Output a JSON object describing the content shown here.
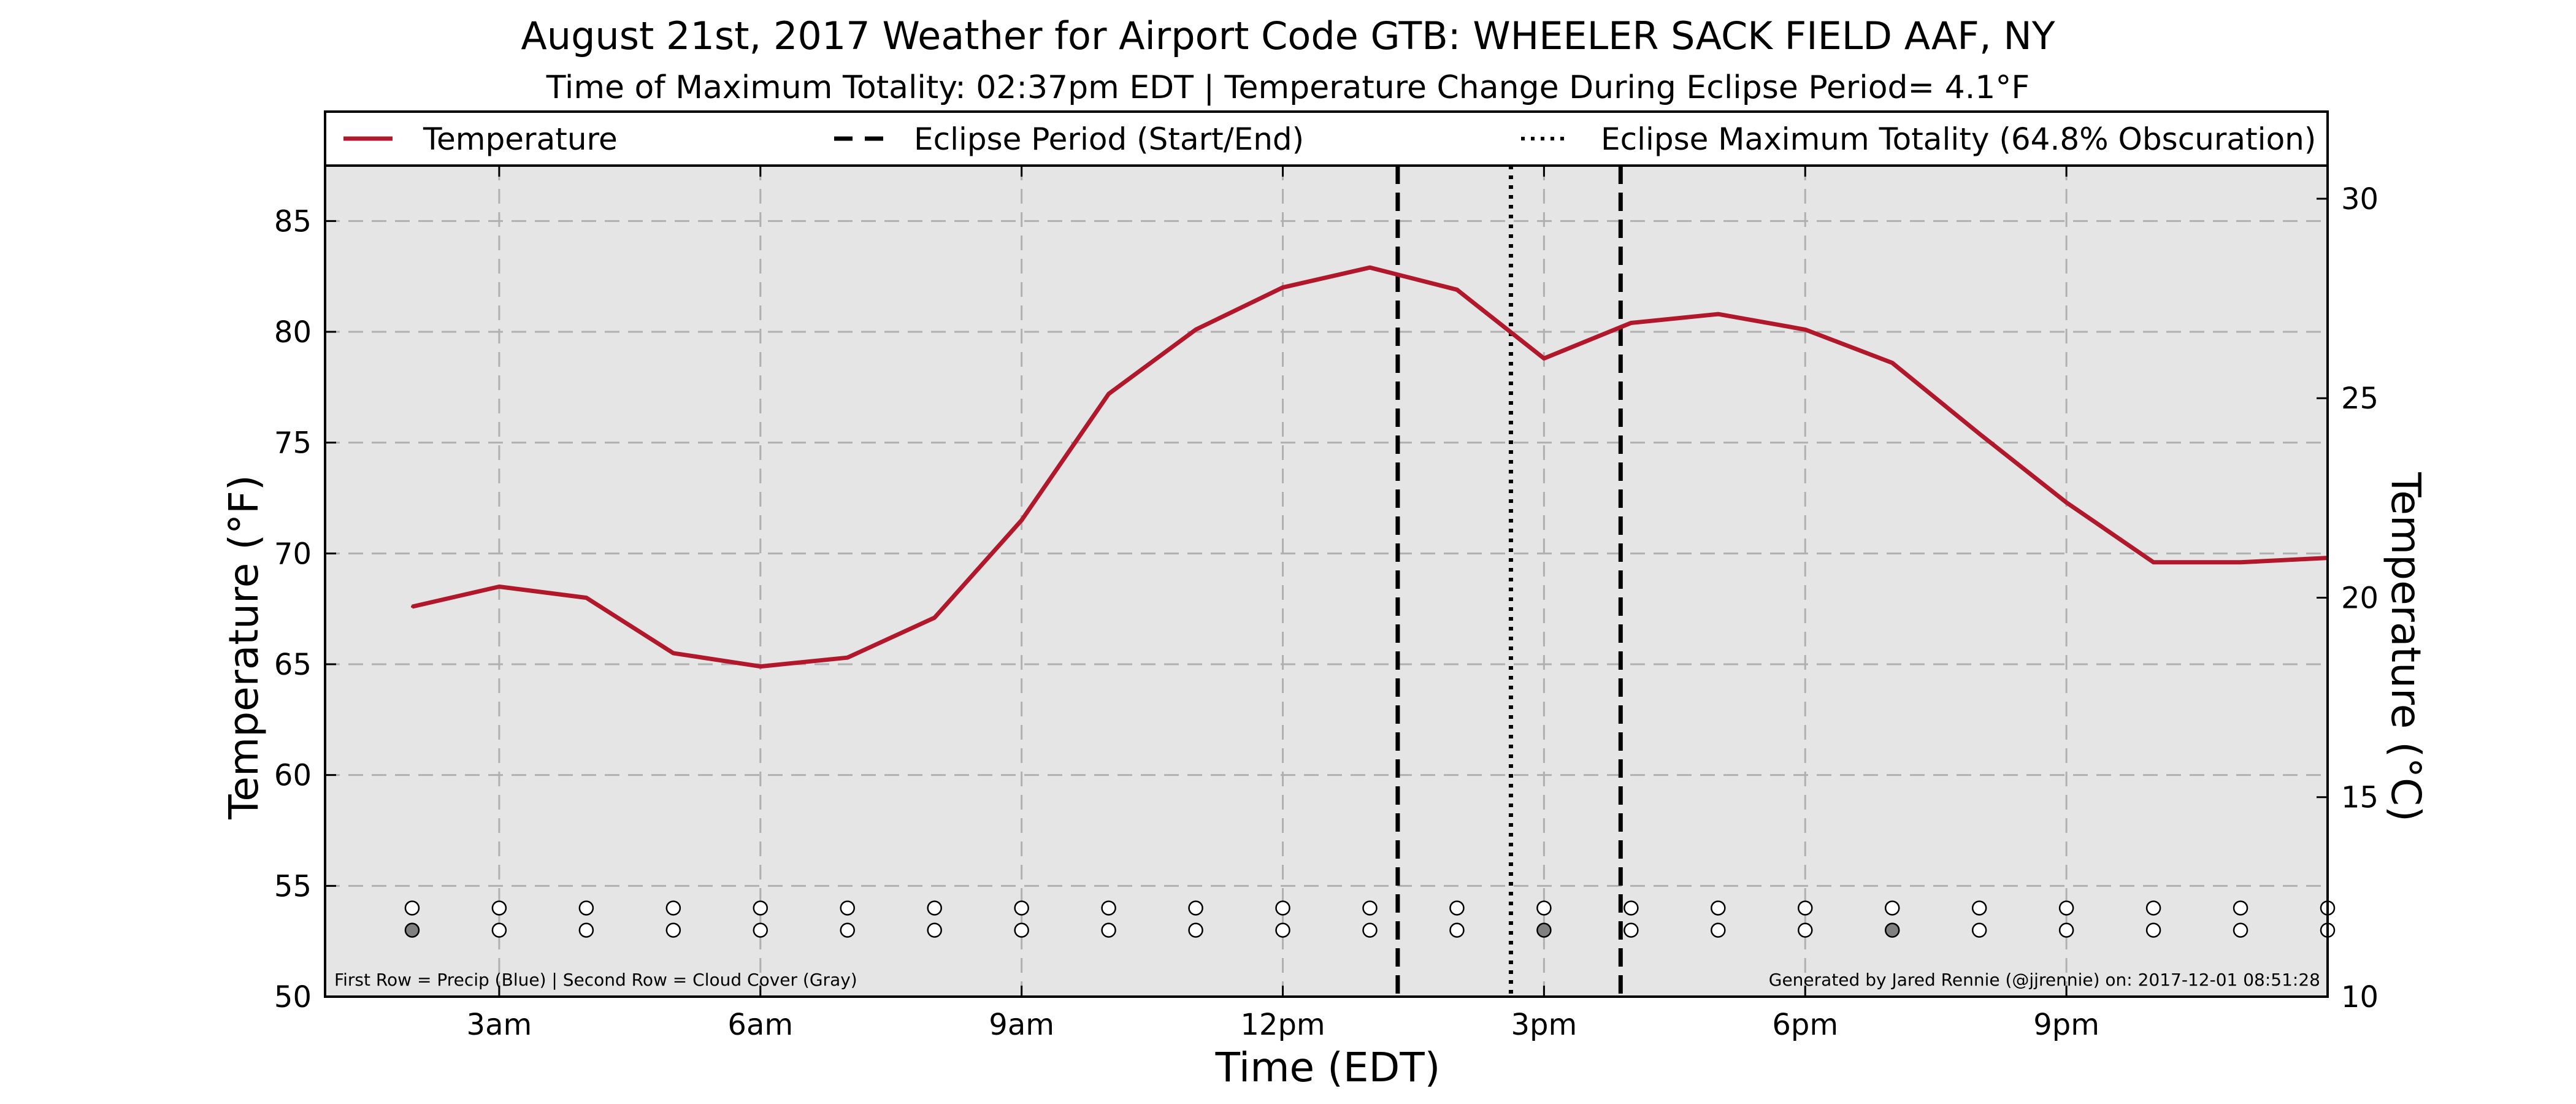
{
  "chart_data": {
    "type": "line",
    "title": "August 21st, 2017 Weather for Airport Code GTB: WHEELER SACK FIELD AAF, NY",
    "subtitle": "Time of Maximum Totality: 02:37pm EDT | Temperature Change During Eclipse Period= 4.1°F",
    "xlabel": "Time (EDT)",
    "ylabel_left": "Temperature (°F)",
    "ylabel_right": "Temperature (°C)",
    "xlim": [
      1,
      24
    ],
    "ylim": [
      50,
      87.5
    ],
    "ylim_right_c": [
      10,
      30.83
    ],
    "x_ticks": [
      {
        "x": 3,
        "label": "3am"
      },
      {
        "x": 6,
        "label": "6am"
      },
      {
        "x": 9,
        "label": "9am"
      },
      {
        "x": 12,
        "label": "12pm"
      },
      {
        "x": 15,
        "label": "3pm"
      },
      {
        "x": 18,
        "label": "6pm"
      },
      {
        "x": 21,
        "label": "9pm"
      }
    ],
    "y_ticks_left": [
      50,
      55,
      60,
      65,
      70,
      75,
      80,
      85
    ],
    "y_ticks_right": [
      10,
      15,
      20,
      25,
      30
    ],
    "grid": true,
    "legend_position": "top",
    "legend": [
      {
        "label": "Temperature",
        "style": "solid"
      },
      {
        "label": "Eclipse Period (Start/End)",
        "style": "dashed"
      },
      {
        "label": "Eclipse Maximum Totality (64.8% Obscuration)",
        "style": "dotted"
      }
    ],
    "series": [
      {
        "name": "Temperature",
        "color": "#b2182b",
        "x": [
          2,
          3,
          4,
          5,
          6,
          7,
          8,
          9,
          10,
          11,
          12,
          13,
          14,
          15,
          16,
          17,
          18,
          19,
          20,
          21,
          22,
          23,
          24
        ],
        "values": [
          67.6,
          68.5,
          68.0,
          65.5,
          64.9,
          65.3,
          67.1,
          71.5,
          77.2,
          80.1,
          82.0,
          82.9,
          81.9,
          78.8,
          80.4,
          80.8,
          80.1,
          78.6,
          75.4,
          72.3,
          69.6,
          69.6,
          69.8
        ]
      }
    ],
    "vlines": [
      {
        "x": 13.32,
        "style": "dashed",
        "meaning": "eclipse start"
      },
      {
        "x": 14.62,
        "style": "dotted",
        "meaning": "maximum totality"
      },
      {
        "x": 15.88,
        "style": "dashed",
        "meaning": "eclipse end"
      }
    ],
    "indicator_rows": {
      "x": [
        2,
        3,
        4,
        5,
        6,
        7,
        8,
        9,
        10,
        11,
        12,
        13,
        14,
        15,
        16,
        17,
        18,
        19,
        20,
        21,
        22,
        23,
        24
      ],
      "row1_y": 54.0,
      "row2_y": 53.0,
      "row1_precip": [
        0,
        0,
        0,
        0,
        0,
        0,
        0,
        0,
        0,
        0,
        0,
        0,
        0,
        0,
        0,
        0,
        0,
        0,
        0,
        0,
        0,
        0,
        0
      ],
      "row2_cloud": [
        1,
        0,
        0,
        0,
        0,
        0,
        0,
        0,
        0,
        0,
        0,
        0,
        0,
        1,
        0,
        0,
        0,
        1,
        0,
        0,
        0,
        0,
        0
      ],
      "precip_color": "#3b6fd6",
      "cloud_color": "#808080"
    },
    "note_left": "First Row = Precip (Blue) | Second Row = Cloud Cover (Gray)",
    "note_right": "Generated by Jared Rennie (@jjrennie) on: 2017-12-01 08:51:28",
    "colors": {
      "plot_bg": "#e5e5e5",
      "grid": "#b0b0b0",
      "line": "#b2182b"
    }
  }
}
